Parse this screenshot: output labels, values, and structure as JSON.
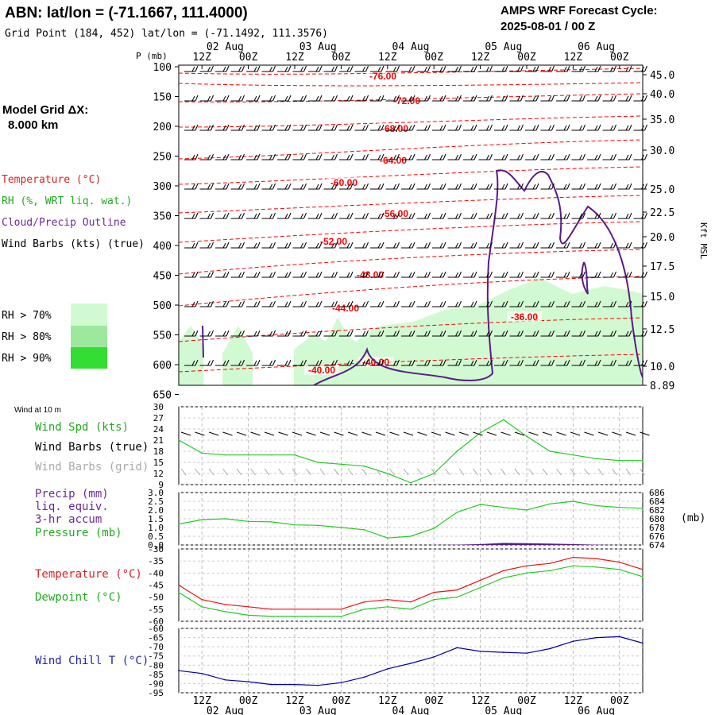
{
  "header": {
    "station_title": "ABN:  lat/lon = (-71.1667, 111.4000)",
    "grid_point": "Grid Point (184, 452) lat/lon = (-71.1492, 111.3576)",
    "cycle_line1": "AMPS WRF Forecast Cycle:",
    "cycle_line2": "2025-08-01 / 00  Z"
  },
  "left_labels": {
    "model_grid_line1": "Model Grid ΔX:",
    "model_grid_line2": "8.000 km",
    "temperature": "Temperature (°C)",
    "rh": "RH (%, WRT liq. wat.)",
    "cloud": "Cloud/Precip Outline",
    "wind_barbs": "Wind Barbs (kts) (true)",
    "rh_legend": [
      "RH > 70%",
      "RH > 80%",
      "RH > 90%"
    ],
    "wind_at_10m": "Wind at 10 m",
    "wind_spd": "Wind Spd (kts)",
    "wind_barbs_true": "Wind Barbs (true)",
    "wind_barbs_grid": "Wind Barbs (grid)",
    "precip_lines": [
      "Precip (mm)",
      "liq. equiv.",
      "3-hr accum"
    ],
    "pressure": "Pressure (mb)",
    "temperature2": "Temperature (°C)",
    "dewpoint": "Dewpoint (°C)",
    "wind_chill": "Wind Chill T (°C)"
  },
  "colors": {
    "temperature": "#ff0000",
    "rh": "#22bb22",
    "cloud": "#5a1a8a",
    "wind_barb": "#000000",
    "wind_barb_grid": "#aaaaaa",
    "rh70": "#d2fad2",
    "rh80": "#9ee89e",
    "rh90": "#33dd33",
    "pressure": "#22cc22",
    "precip": "#5a1a8a",
    "wind_chill": "#0000aa"
  },
  "chart_data": [
    {
      "type": "line",
      "panel": "upper_air_time_height",
      "y_axis_label": "P (mb)",
      "pressure_ticks": [
        "100",
        "150",
        "200",
        "250",
        "300",
        "350",
        "400",
        "450",
        "500",
        "550",
        "600",
        "650"
      ],
      "height_ticks_label": "Kft MSL",
      "height_ticks": [
        "45.0",
        "40.0",
        "35.0",
        "30.0",
        "25.0",
        "22.5",
        "20.0",
        "17.5",
        "15.0",
        "12.5",
        "10.0",
        "8.89"
      ],
      "time_ticks_top": [
        "12Z",
        "00Z",
        "12Z",
        "00Z",
        "12Z",
        "00Z",
        "12Z",
        "00Z",
        "12Z",
        "00Z"
      ],
      "date_ticks": [
        "02 Aug",
        "03 Aug",
        "04 Aug",
        "05 Aug",
        "06 Aug"
      ],
      "temperature_contour_labels": [
        "-76.00",
        "-72.00",
        "-68.00",
        "-64.00",
        "-60.00",
        "-56.00",
        "-52.00",
        "-48.00",
        "-44.00",
        "-40.00",
        "-40.00",
        "-36.00"
      ]
    },
    {
      "type": "line",
      "panel": "wind_speed_10m",
      "ylim": [
        9,
        30
      ],
      "y_ticks": [
        "30",
        "27",
        "24",
        "21",
        "18",
        "15",
        "12",
        "9"
      ],
      "x_hours": [
        0,
        6,
        12,
        18,
        24,
        30,
        36,
        42,
        48,
        54,
        60,
        66,
        72,
        78,
        84,
        90,
        96,
        102,
        108,
        114,
        120
      ],
      "series": [
        {
          "name": "Wind Spd (kts)",
          "values": [
            21,
            17.5,
            17,
            17,
            17,
            17,
            15,
            14.5,
            14,
            12,
            9.5,
            12,
            18,
            23,
            26.5,
            22,
            18,
            17,
            16,
            15.5,
            15.5
          ]
        }
      ]
    },
    {
      "type": "line",
      "panel": "precip_pressure",
      "precip_ylim": [
        0,
        3
      ],
      "precip_ticks": [
        "3.0",
        "2.5",
        "2.0",
        "1.5",
        "1.0",
        "0.5",
        "0.0"
      ],
      "pressure_ylim": [
        674,
        686
      ],
      "pressure_ticks": [
        "686",
        "684",
        "682",
        "680",
        "678",
        "676",
        "674"
      ],
      "pressure_unit": "(mb)",
      "x_hours": [
        0,
        6,
        12,
        18,
        24,
        30,
        36,
        42,
        48,
        54,
        60,
        66,
        72,
        78,
        84,
        90,
        96,
        102,
        108,
        114,
        120
      ],
      "series": [
        {
          "name": "Pressure (mb)",
          "values": [
            678.8,
            679.8,
            680,
            679.4,
            679.3,
            678.6,
            678.5,
            678,
            677.5,
            675.6,
            676,
            677.8,
            681.5,
            683.3,
            682.6,
            682,
            683.4,
            684,
            683,
            682.6,
            682.4
          ]
        },
        {
          "name": "Precip (mm)",
          "values": [
            0,
            0,
            0,
            0,
            0,
            0,
            0,
            0,
            0,
            0,
            0,
            0,
            0.02,
            0.05,
            0.12,
            0.1,
            0.08,
            0.05,
            0.02,
            0,
            0
          ]
        }
      ]
    },
    {
      "type": "line",
      "panel": "temperature_dewpoint",
      "ylim": [
        -60,
        -30
      ],
      "y_ticks": [
        "-30",
        "-35",
        "-40",
        "-45",
        "-50",
        "-55",
        "-60"
      ],
      "x_hours": [
        0,
        6,
        12,
        18,
        24,
        30,
        36,
        42,
        48,
        54,
        60,
        66,
        72,
        78,
        84,
        90,
        96,
        102,
        108,
        114,
        120
      ],
      "series": [
        {
          "name": "Temperature (°C)",
          "values": [
            -45,
            -51,
            -53,
            -54,
            -55,
            -55,
            -55,
            -55,
            -52,
            -51,
            -52,
            -48,
            -47,
            -43,
            -39,
            -37,
            -36,
            -33.5,
            -34,
            -35.5,
            -38.5
          ]
        },
        {
          "name": "Dewpoint (°C)",
          "values": [
            -48,
            -54,
            -56,
            -57.5,
            -58,
            -58,
            -58,
            -58,
            -55,
            -54,
            -55,
            -51,
            -50,
            -46,
            -42,
            -40,
            -39,
            -37,
            -37.5,
            -38.5,
            -41.5
          ]
        }
      ]
    },
    {
      "type": "line",
      "panel": "wind_chill",
      "ylim": [
        -95,
        -60
      ],
      "y_ticks": [
        "-60",
        "-65",
        "-70",
        "-75",
        "-80",
        "-85",
        "-90",
        "-95"
      ],
      "x_hours": [
        0,
        6,
        12,
        18,
        24,
        30,
        36,
        42,
        48,
        54,
        60,
        66,
        72,
        78,
        84,
        90,
        96,
        102,
        108,
        114,
        120
      ],
      "series": [
        {
          "name": "Wind Chill T (°C)",
          "values": [
            -83,
            -84.5,
            -88,
            -89,
            -90.5,
            -90.5,
            -91,
            -89.5,
            -86.5,
            -82,
            -79,
            -75.5,
            -70.5,
            -72.5,
            -73,
            -73.5,
            -71,
            -67,
            -65,
            -64.5,
            -68
          ]
        }
      ]
    }
  ]
}
